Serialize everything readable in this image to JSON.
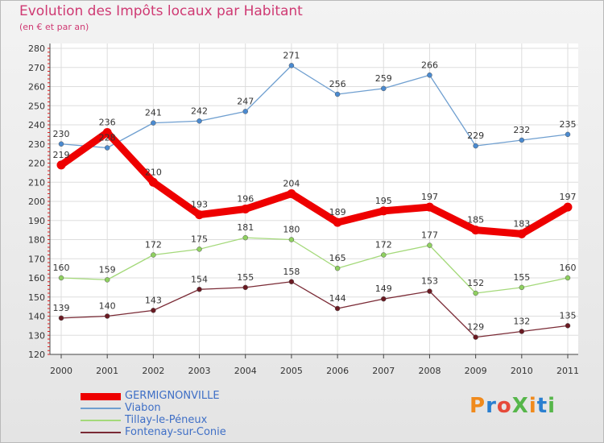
{
  "title": "Evolution des Impôts locaux par Habitant",
  "subtitle": "(en € et par an)",
  "logo": {
    "text": "ProXiti",
    "colors": [
      "#f08a1c",
      "#2a7fd0",
      "#e64a3a",
      "#56b64a",
      "#f08a1c",
      "#2a7fd0",
      "#56b64a"
    ]
  },
  "chart_data": {
    "type": "line",
    "x": [
      "2000",
      "2001",
      "2002",
      "2003",
      "2004",
      "2005",
      "2006",
      "2007",
      "2008",
      "2009",
      "2010",
      "2011"
    ],
    "ylim": [
      120,
      280
    ],
    "yticks": [
      120,
      130,
      140,
      150,
      160,
      170,
      180,
      190,
      200,
      210,
      220,
      230,
      240,
      250,
      260,
      270,
      280
    ],
    "grid": true,
    "legend_position": "bottom-left",
    "series": [
      {
        "name": "Viabon",
        "values": [
          230,
          228,
          241,
          242,
          247,
          271,
          256,
          259,
          266,
          229,
          232,
          235
        ],
        "color": "#6f9fd0",
        "marker": "#4a8ad0",
        "bold": false
      },
      {
        "name": "Tillay-le-Péneux",
        "values": [
          160,
          159,
          172,
          175,
          181,
          180,
          165,
          172,
          177,
          152,
          155,
          160
        ],
        "color": "#a4d97a",
        "marker": "#8fd060",
        "bold": false
      },
      {
        "name": "Fontenay-sur-Conie",
        "values": [
          139,
          140,
          143,
          154,
          155,
          158,
          144,
          149,
          153,
          129,
          132,
          135
        ],
        "color": "#7a2a35",
        "marker": "#6a1a22",
        "bold": false
      },
      {
        "name": "GERMIGNONVILLE",
        "values": [
          219,
          236,
          210,
          193,
          196,
          204,
          189,
          195,
          197,
          185,
          183,
          197
        ],
        "color": "#ee0000",
        "marker": "#ee0000",
        "bold": true
      }
    ]
  },
  "legend": [
    {
      "name": "GERMIGNONVILLE",
      "color": "#ee0000",
      "bold": true
    },
    {
      "name": "Viabon",
      "color": "#6f9fd0",
      "bold": false
    },
    {
      "name": "Tillay-le-Péneux",
      "color": "#a4d97a",
      "bold": false
    },
    {
      "name": "Fontenay-sur-Conie",
      "color": "#7a2a35",
      "bold": false
    }
  ]
}
